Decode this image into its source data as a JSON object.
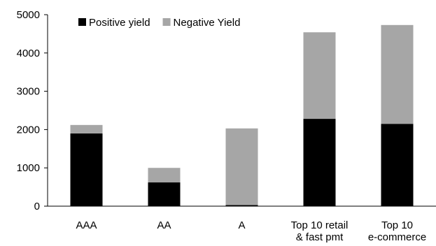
{
  "chart_data": {
    "type": "stacked_bar",
    "categories": [
      "AAA",
      "AA",
      "A",
      "Top 10 retail\n& fast pmt",
      "Top 10\ne-commerce"
    ],
    "series": [
      {
        "name": "Positive yield",
        "color": "#000000",
        "values": [
          1900,
          620,
          30,
          2280,
          2150
        ]
      },
      {
        "name": "Negative Yield",
        "color": "#a6a6a6",
        "values": [
          220,
          380,
          2000,
          2260,
          2580
        ]
      }
    ],
    "ylim": [
      0,
      5000
    ],
    "yticks": [
      0,
      1000,
      2000,
      3000,
      4000,
      5000
    ],
    "grid": false,
    "legend": "top-left"
  }
}
